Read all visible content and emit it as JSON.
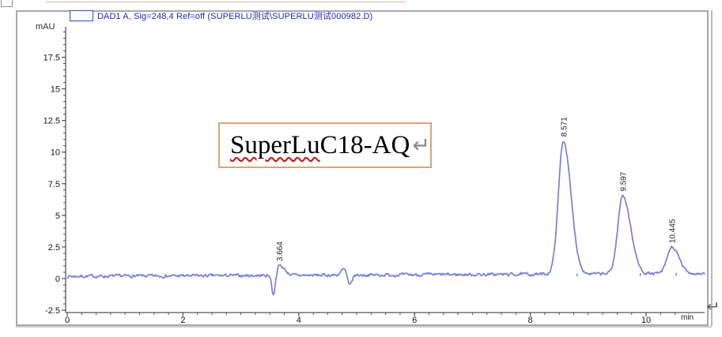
{
  "artifacts": {
    "paragraph_mark": "↵",
    "pink_guide_color": "#e2b0b0"
  },
  "annotation": {
    "misspelled_word": "SuperLu",
    "rest": " C18-AQ",
    "return_mark": "↵",
    "border_color": "#dba573"
  },
  "chart_data": {
    "type": "line",
    "title": "DAD1 A, Sig=248,4 Ref=off (SUPERLU测试\\SUPERLU测试000982.D)",
    "xlabel": "min",
    "ylabel": "mAU",
    "xlim": [
      0,
      11.0
    ],
    "ylim": [
      -2.75,
      19.8
    ],
    "x_major_ticks": [
      0,
      2,
      4,
      6,
      8,
      10
    ],
    "x_minor_step": 0.25,
    "y_major_ticks": [
      17.5,
      15,
      12.5,
      10,
      7.5,
      5,
      2.5,
      0,
      -2.5
    ],
    "y_minor_step": 0.5,
    "grid": false,
    "legend_position": "top-left",
    "line_color": "#7d7dd8",
    "legend_swatch_border": "#4040cf",
    "legend_text_color": "#2424cc",
    "baseline": {
      "start_mau": 0.18,
      "drift_mau_per_min": 0.02,
      "noise_mau": 0.06
    },
    "peaks": [
      {
        "label": "3.664",
        "rt_min": 3.664,
        "height_mau": 0.8,
        "sigma_left": 0.05,
        "sigma_right": 0.09
      },
      {
        "label": "8.571",
        "rt_min": 8.571,
        "height_mau": 10.55,
        "sigma_left": 0.085,
        "sigma_right": 0.13
      },
      {
        "label": "9.597",
        "rt_min": 9.597,
        "height_mau": 6.2,
        "sigma_left": 0.085,
        "sigma_right": 0.135
      },
      {
        "label": "10.445",
        "rt_min": 10.445,
        "height_mau": 2.1,
        "sigma_left": 0.08,
        "sigma_right": 0.12
      }
    ],
    "disturbances": [
      {
        "rt_min": 3.56,
        "height_mau": -1.6,
        "sigma_left": 0.025,
        "sigma_right": 0.035
      },
      {
        "rt_min": 4.78,
        "height_mau": 0.45,
        "sigma_left": 0.05,
        "sigma_right": 0.03
      },
      {
        "rt_min": 4.875,
        "height_mau": -0.85,
        "sigma_left": 0.025,
        "sigma_right": 0.04
      }
    ],
    "baseline_marks_min": [
      8.81,
      9.9,
      10.52
    ]
  }
}
